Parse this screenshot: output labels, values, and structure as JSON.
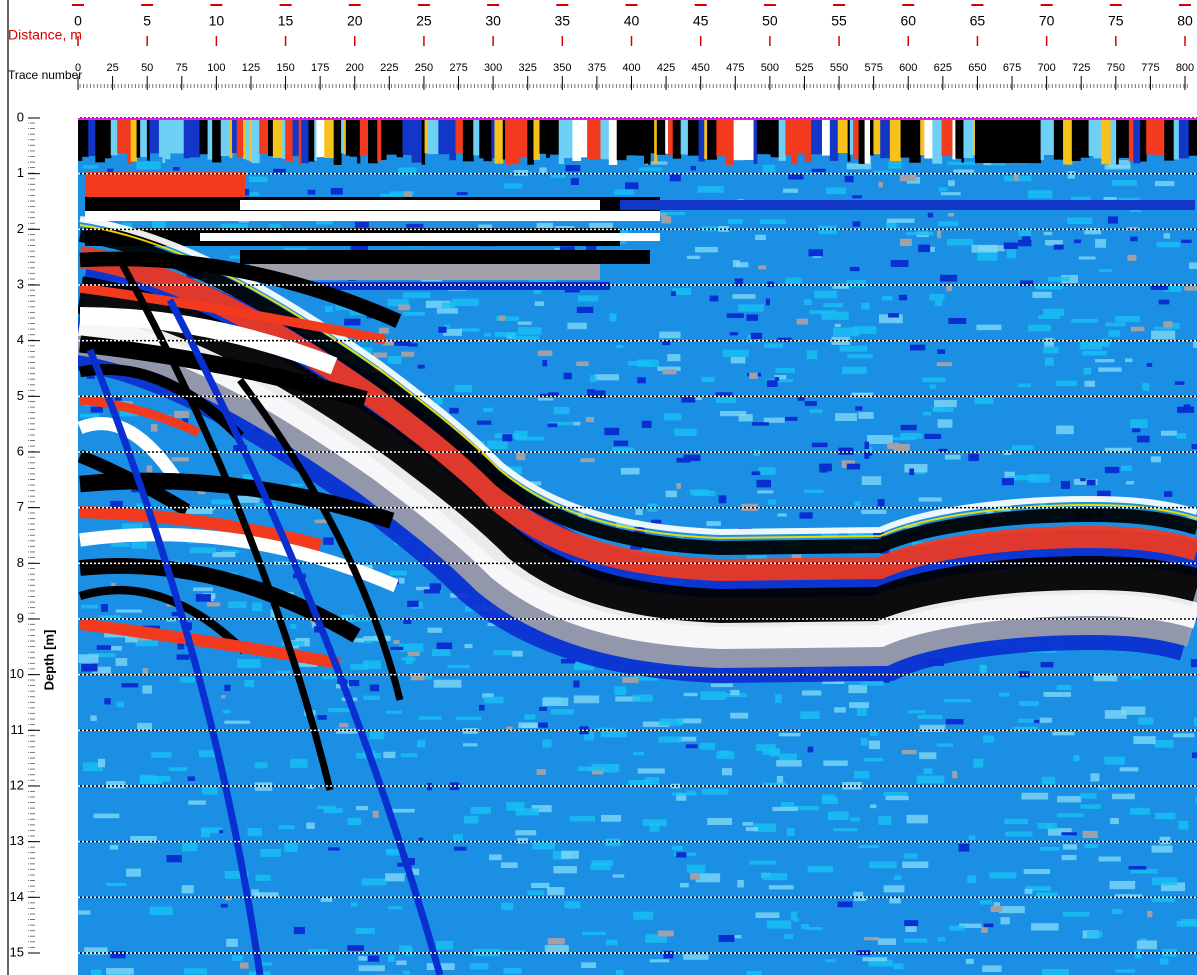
{
  "axes": {
    "distance": {
      "label": "Distance, m",
      "ticks": [
        0,
        5,
        10,
        15,
        20,
        25,
        30,
        35,
        40,
        45,
        50,
        55,
        60,
        65,
        70,
        75,
        80
      ]
    },
    "trace": {
      "label": "Trace number",
      "ticks": [
        0,
        25,
        50,
        75,
        100,
        125,
        150,
        175,
        200,
        225,
        250,
        275,
        300,
        325,
        350,
        375,
        400,
        425,
        450,
        475,
        500,
        525,
        550,
        575,
        600,
        625,
        650,
        675,
        700,
        725,
        750,
        775,
        800
      ]
    },
    "depth": {
      "label": "Depth [m]",
      "ticks": [
        0,
        1,
        2,
        3,
        4,
        5,
        6,
        7,
        8,
        9,
        10,
        11,
        12,
        13,
        14,
        15
      ]
    }
  }
}
